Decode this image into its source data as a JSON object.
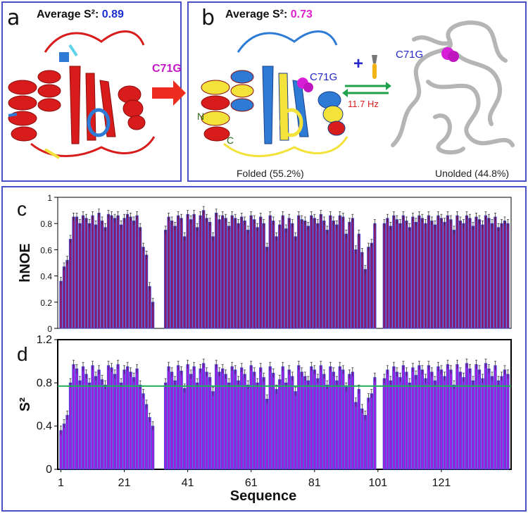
{
  "panel_a": {
    "label": "a",
    "avg_prefix": "Average S²: ",
    "avg_value": "0.89",
    "avg_value_color": "#1a2fd0",
    "mutation_label": "C71G"
  },
  "panel_b": {
    "label": "b",
    "avg_prefix": "Average S²: ",
    "avg_value": "0.73",
    "avg_value_color": "#e020d0",
    "site_label_folded": "C71G",
    "site_label_unfolded": "C71G",
    "n_term": "N",
    "c_term": "C",
    "exchange_rate": "11.7 Hz",
    "folded_caption": "Folded (55.2%)",
    "unfolded_caption": "Unolded (44.8%)",
    "plus": "+"
  },
  "colors": {
    "panel_border": "#4a4fc9",
    "helix_red": "#d81c1c",
    "strand_blue": "#2e7bd6",
    "yellow": "#f2e23a",
    "magenta_sphere": "#d81fd8",
    "gray_coil": "#b5b5b5",
    "arrow_red": "#ee2b1f",
    "arrow_green": "#1fa24a",
    "bar_hnoe": "#8c1a6c",
    "bar_s2": "#a01ee0",
    "bar_outline": "#3a4dd8",
    "avg_line": "#21b05a"
  },
  "chart_data": [
    {
      "type": "bar",
      "panel_label": "c",
      "ylabel": "hNOE",
      "ylim": [
        0,
        1
      ],
      "yticks": [
        "0",
        "0.2",
        "0.4",
        "0.6",
        "0.8",
        "1"
      ],
      "start_residue": 1,
      "values": [
        0.36,
        0.47,
        0.52,
        0.68,
        0.85,
        0.85,
        0.8,
        0.86,
        0.84,
        0.8,
        0.86,
        0.79,
        0.88,
        0.82,
        0.77,
        0.87,
        0.86,
        0.84,
        0.86,
        0.79,
        0.84,
        0.87,
        0.85,
        0.82,
        0.86,
        0.77,
        0.62,
        0.56,
        0.32,
        0.2,
        null,
        null,
        null,
        0.75,
        0.85,
        0.82,
        0.78,
        0.86,
        0.84,
        0.7,
        0.87,
        0.83,
        0.87,
        0.77,
        0.86,
        0.9,
        0.84,
        0.81,
        0.7,
        0.88,
        0.83,
        0.86,
        0.84,
        0.78,
        0.86,
        0.84,
        0.8,
        0.85,
        0.82,
        0.75,
        0.86,
        0.83,
        0.77,
        0.85,
        0.8,
        0.62,
        0.86,
        0.82,
        0.7,
        0.79,
        0.86,
        0.76,
        0.84,
        0.8,
        0.7,
        0.86,
        0.83,
        0.82,
        0.78,
        0.86,
        0.84,
        0.8,
        0.87,
        0.82,
        0.75,
        0.86,
        0.82,
        0.79,
        0.86,
        0.85,
        0.72,
        0.81,
        0.84,
        0.6,
        0.72,
        0.58,
        0.45,
        0.62,
        0.65,
        0.8,
        null,
        null,
        0.8,
        0.84,
        0.78,
        0.86,
        0.83,
        0.8,
        0.86,
        0.82,
        0.77,
        0.85,
        0.81,
        0.86,
        0.84,
        0.8,
        0.86,
        0.82,
        0.79,
        0.86,
        0.84,
        0.81,
        0.86,
        0.83,
        0.75,
        0.86,
        0.82,
        0.8,
        0.86,
        0.84,
        0.78,
        0.85,
        0.83,
        0.79,
        0.86,
        0.84,
        0.8,
        0.85,
        0.77,
        0.8,
        0.82,
        0.8
      ],
      "errors": 0.03
    },
    {
      "type": "bar",
      "panel_label": "d",
      "ylabel": "S²",
      "xlabel": "Sequence",
      "ylim": [
        0,
        1.2
      ],
      "yticks": [
        "0",
        "0.4",
        "0.8",
        "1.2"
      ],
      "xtick_labels": [
        "1",
        "21",
        "41",
        "61",
        "81",
        "101",
        "121"
      ],
      "average_line": 0.77,
      "start_residue": 1,
      "values": [
        0.36,
        0.42,
        0.5,
        0.8,
        0.97,
        0.93,
        0.82,
        0.95,
        0.88,
        0.8,
        0.96,
        0.86,
        0.92,
        0.83,
        0.78,
        0.96,
        0.94,
        0.88,
        0.97,
        0.8,
        0.92,
        0.95,
        0.9,
        0.85,
        0.93,
        0.78,
        0.7,
        0.6,
        0.48,
        0.4,
        null,
        null,
        null,
        0.8,
        0.95,
        0.9,
        0.82,
        0.96,
        0.91,
        0.75,
        0.97,
        0.88,
        0.95,
        0.8,
        0.93,
        0.98,
        0.9,
        0.85,
        0.72,
        0.97,
        0.9,
        0.93,
        0.88,
        0.8,
        0.95,
        0.92,
        0.82,
        0.94,
        0.88,
        0.78,
        0.96,
        0.9,
        0.8,
        0.94,
        0.85,
        0.65,
        0.95,
        0.89,
        0.74,
        0.83,
        0.95,
        0.8,
        0.92,
        0.86,
        0.72,
        0.96,
        0.9,
        0.86,
        0.82,
        0.95,
        0.92,
        0.84,
        0.96,
        0.88,
        0.78,
        0.95,
        0.9,
        0.82,
        0.95,
        0.92,
        0.76,
        0.88,
        0.9,
        0.62,
        0.74,
        0.56,
        0.5,
        0.66,
        0.7,
        0.85,
        null,
        null,
        0.84,
        0.92,
        0.82,
        0.95,
        0.9,
        0.85,
        0.96,
        0.9,
        0.8,
        0.94,
        0.87,
        0.96,
        0.92,
        0.84,
        0.96,
        0.9,
        0.82,
        0.95,
        0.92,
        0.86,
        0.97,
        0.92,
        0.78,
        0.97,
        0.9,
        0.85,
        0.98,
        0.93,
        0.82,
        0.97,
        0.92,
        0.84,
        0.98,
        0.93,
        0.86,
        0.96,
        0.82,
        0.86,
        0.92,
        0.88
      ],
      "errors": 0.04
    }
  ]
}
